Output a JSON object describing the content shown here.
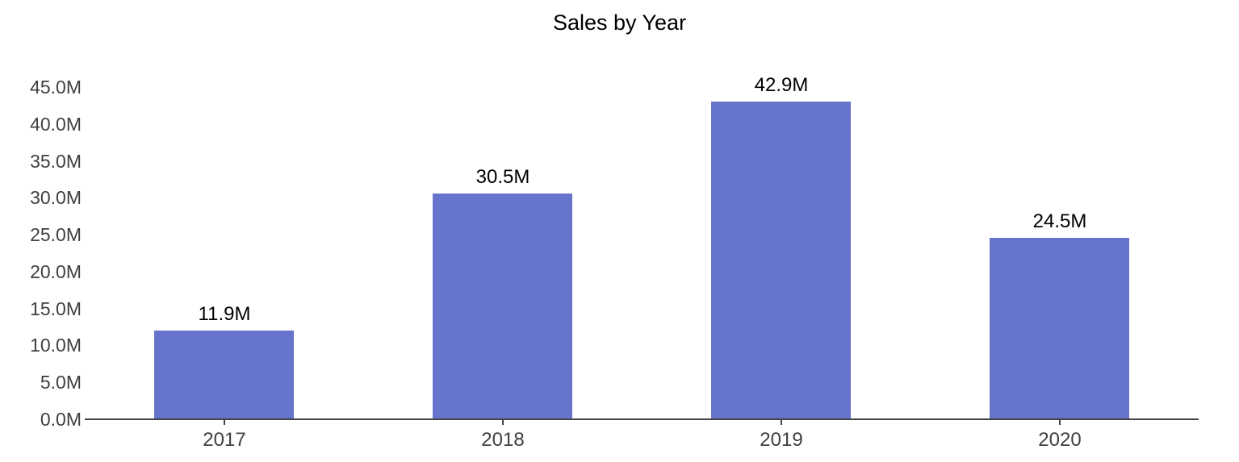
{
  "chart_data": {
    "type": "bar",
    "title": "Sales by Year",
    "categories": [
      "2017",
      "2018",
      "2019",
      "2020"
    ],
    "values": [
      11900000,
      30500000,
      42900000,
      24500000
    ],
    "bar_labels": [
      "11.9M",
      "30.5M",
      "42.9M",
      "24.5M"
    ],
    "xlabel": "",
    "ylabel": "",
    "ylim": [
      0,
      45000000
    ],
    "y_tick_step": 5000000,
    "y_tick_labels": [
      "0.0M",
      "5.0M",
      "10.0M",
      "15.0M",
      "20.0M",
      "25.0M",
      "30.0M",
      "35.0M",
      "40.0M",
      "45.0M"
    ],
    "grid": false,
    "legend": "none",
    "colors": {
      "bar": "#6674cb",
      "axis_line": "#444444",
      "tick_label": "#404040",
      "title": "#000000",
      "value_label": "#000000",
      "background": "#ffffff"
    }
  }
}
